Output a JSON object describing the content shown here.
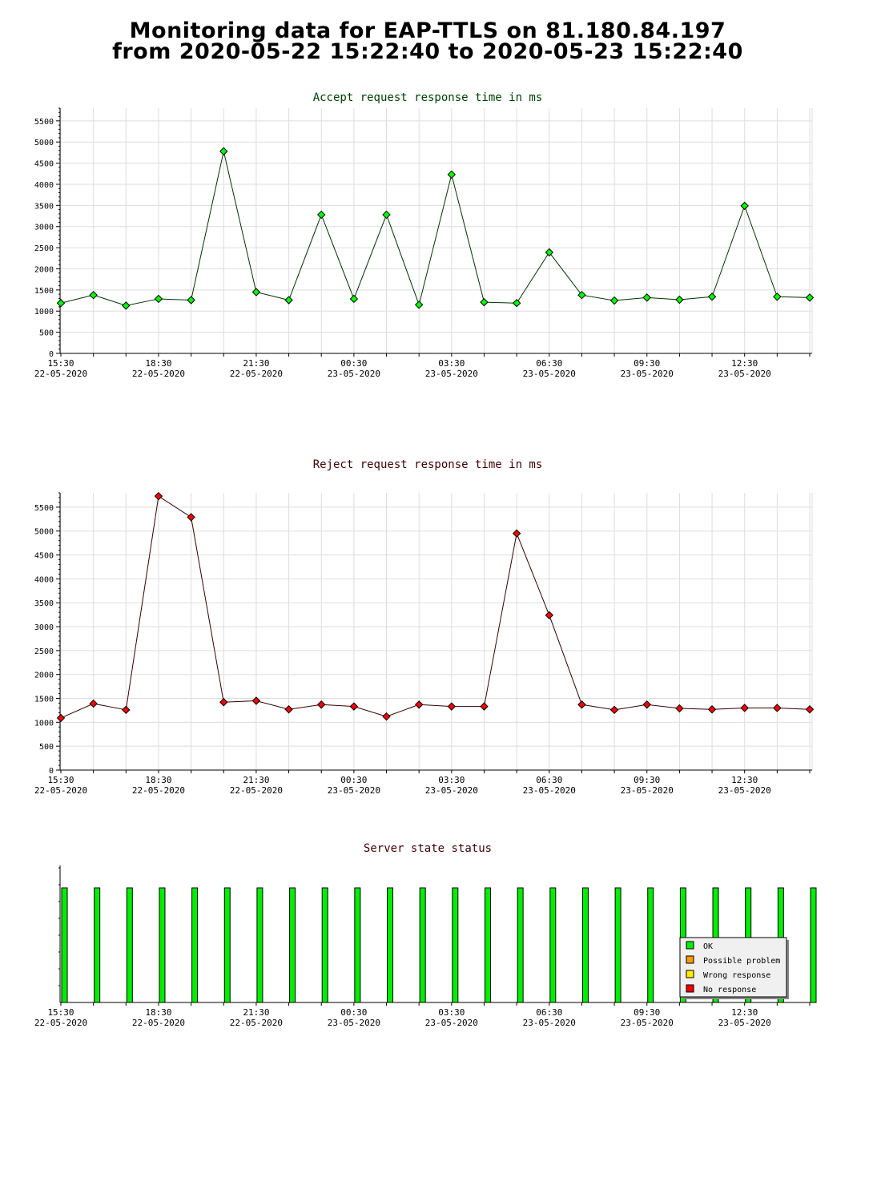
{
  "page": {
    "title_line1": "Monitoring data for EAP-TTLS on 81.180.84.197",
    "title_line2": "from 2020-05-22 15:22:40 to 2020-05-23 15:22:40"
  },
  "x_axis_labels": [
    {
      "time": "15:30",
      "date": "22-05-2020"
    },
    {
      "time": "18:30",
      "date": "22-05-2020"
    },
    {
      "time": "21:30",
      "date": "22-05-2020"
    },
    {
      "time": "00:30",
      "date": "23-05-2020"
    },
    {
      "time": "03:30",
      "date": "23-05-2020"
    },
    {
      "time": "06:30",
      "date": "23-05-2020"
    },
    {
      "time": "09:30",
      "date": "23-05-2020"
    },
    {
      "time": "12:30",
      "date": "23-05-2020"
    }
  ],
  "chart_data": [
    {
      "type": "line",
      "title": "Accept request response time in ms",
      "color": "#00ff00",
      "line_color": "#003300",
      "title_color": "#004000",
      "ylim": [
        0,
        5800
      ],
      "yticks": [
        0,
        500,
        1000,
        1500,
        2000,
        2500,
        3000,
        3500,
        4000,
        4500,
        5000,
        5500
      ],
      "x": [
        "15:30",
        "16:30",
        "17:30",
        "18:30",
        "19:30",
        "20:30",
        "21:30",
        "22:30",
        "23:30",
        "00:30",
        "01:30",
        "02:30",
        "03:30",
        "04:30",
        "05:30",
        "06:30",
        "07:30",
        "08:30",
        "09:30",
        "10:30",
        "11:30",
        "12:30",
        "13:30",
        "14:30"
      ],
      "values": [
        1190,
        1380,
        1130,
        1290,
        1260,
        4780,
        1450,
        1260,
        3280,
        1290,
        3280,
        1150,
        4230,
        1210,
        1190,
        2390,
        1380,
        1250,
        1320,
        1270,
        1340,
        3490,
        1340,
        1320
      ]
    },
    {
      "type": "line",
      "title": "Reject request response time in ms",
      "color": "#ff0000",
      "line_color": "#330000",
      "title_color": "#400000",
      "ylim": [
        0,
        5800
      ],
      "yticks": [
        0,
        500,
        1000,
        1500,
        2000,
        2500,
        3000,
        3500,
        4000,
        4500,
        5000,
        5500
      ],
      "x": [
        "15:30",
        "16:30",
        "17:30",
        "18:30",
        "19:30",
        "20:30",
        "21:30",
        "22:30",
        "23:30",
        "00:30",
        "01:30",
        "02:30",
        "03:30",
        "04:30",
        "05:30",
        "06:30",
        "07:30",
        "08:30",
        "09:30",
        "10:30",
        "11:30",
        "12:30",
        "13:30",
        "14:30"
      ],
      "values": [
        1090,
        1390,
        1260,
        5730,
        5290,
        1420,
        1450,
        1270,
        1370,
        1330,
        1120,
        1370,
        1330,
        1330,
        4950,
        3240,
        1370,
        1260,
        1370,
        1290,
        1270,
        1300,
        1300,
        1270
      ]
    },
    {
      "type": "bar",
      "title": "Server state status",
      "title_color": "#400000",
      "bar_color": "#00ee00",
      "states": [
        "OK",
        "OK",
        "OK",
        "OK",
        "OK",
        "OK",
        "OK",
        "OK",
        "OK",
        "OK",
        "OK",
        "OK",
        "OK",
        "OK",
        "OK",
        "OK",
        "OK",
        "OK",
        "OK",
        "OK",
        "OK",
        "OK",
        "OK",
        "OK"
      ],
      "legend": [
        {
          "label": "OK",
          "color": "#00ee00"
        },
        {
          "label": "Possible problem",
          "color": "#ff9900"
        },
        {
          "label": "Wrong response",
          "color": "#ffee00"
        },
        {
          "label": "No response",
          "color": "#ee0000"
        }
      ],
      "legend_position": "bottom-right"
    }
  ]
}
